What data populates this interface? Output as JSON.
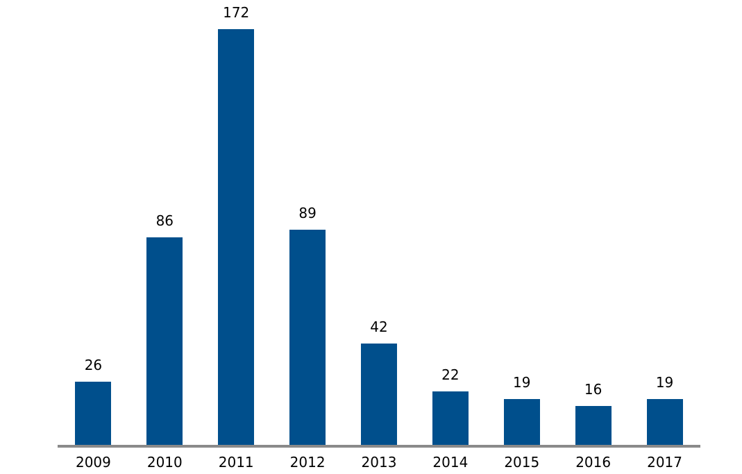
{
  "chart_data": {
    "type": "bar",
    "title": "",
    "xlabel": "",
    "ylabel": "",
    "categories": [
      "2009",
      "2010",
      "2011",
      "2012",
      "2013",
      "2014",
      "2015",
      "2016",
      "2017"
    ],
    "values": [
      26,
      86,
      172,
      89,
      42,
      22,
      19,
      16,
      19
    ],
    "data_labels": [
      "26",
      "86",
      "172",
      "89",
      "42",
      "22",
      "19",
      "16",
      "19"
    ],
    "ylim": [
      0,
      180
    ],
    "grid": false,
    "legend": false,
    "colors": {
      "bar": "#004F8C",
      "axis_line": "#8A8A8A",
      "label_text": "#000000",
      "background": "#FFFFFF"
    }
  }
}
